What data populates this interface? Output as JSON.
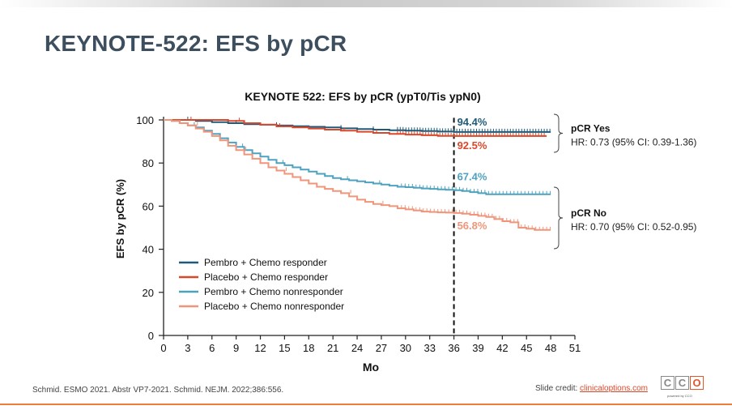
{
  "slide": {
    "title": "KEYNOTE-522: EFS by pCR",
    "footer_reference": "Schmid. ESMO 2021. Abstr VP7-2021. Schmid. NEJM. 2022;386:556.",
    "credit_label": "Slide credit:",
    "credit_link": "clinicaloptions.com",
    "logo": {
      "letters": [
        "C",
        "C",
        "O"
      ],
      "tagline": "powered by CCO"
    }
  },
  "chart_data": {
    "type": "line",
    "title": "KEYNOTE 522: EFS by pCR (ypT0/Tis ypN0)",
    "xlabel": "Mo",
    "ylabel": "EFS by pCR (%)",
    "xlim": [
      0,
      51
    ],
    "ylim": [
      0,
      100
    ],
    "xticks": [
      0,
      3,
      6,
      9,
      12,
      15,
      18,
      21,
      24,
      27,
      30,
      33,
      36,
      39,
      42,
      45,
      48,
      51
    ],
    "yticks": [
      0,
      20,
      40,
      60,
      80,
      100
    ],
    "grid": false,
    "legend_position": "bottom-left",
    "reference_line_x": 36,
    "series": [
      {
        "name": "Pembro + Chemo responder",
        "color": "#1f5b78",
        "label_at_36": "94.4%",
        "x": [
          0,
          2,
          4,
          6,
          8,
          10,
          12,
          14,
          16,
          18,
          20,
          22,
          24,
          26,
          28,
          30,
          32,
          34,
          36,
          38,
          40,
          42,
          44,
          46,
          48
        ],
        "y": [
          100,
          100,
          99.5,
          99,
          98.5,
          98,
          97.8,
          97.4,
          97.1,
          96.8,
          96.5,
          96.1,
          95.8,
          95.5,
          95.2,
          95,
          94.8,
          94.6,
          94.4,
          94.4,
          94.4,
          94.4,
          94.4,
          94.4,
          94.4
        ]
      },
      {
        "name": "Placebo + Chemo responder",
        "color": "#d9482b",
        "label_at_36": "92.5%",
        "x": [
          0,
          2,
          4,
          6,
          8,
          10,
          12,
          14,
          16,
          18,
          20,
          22,
          24,
          26,
          28,
          30,
          32,
          34,
          36,
          38,
          40,
          42,
          44,
          46,
          47.5
        ],
        "y": [
          100,
          100,
          100,
          100,
          99.5,
          98.5,
          97.8,
          97,
          96.5,
          96,
          95.5,
          95,
          94.5,
          94,
          93.5,
          93.2,
          92.9,
          92.6,
          92.5,
          92.5,
          92.5,
          92.5,
          92.5,
          92.5,
          92.5
        ]
      },
      {
        "name": "Pembro + Chemo nonresponder",
        "color": "#4ea2c0",
        "label_at_36": "67.4%",
        "x": [
          0,
          1,
          2,
          3,
          4,
          5,
          6,
          7,
          8,
          9,
          10,
          11,
          12,
          13,
          14,
          15,
          16,
          17,
          18,
          19,
          20,
          21,
          22,
          23,
          24,
          25,
          26,
          27,
          28,
          29,
          30,
          31,
          32,
          33,
          34,
          35,
          36,
          37,
          38,
          39,
          40,
          42,
          44,
          46,
          48
        ],
        "y": [
          100,
          99.5,
          98.5,
          97.5,
          96.5,
          95,
          93.5,
          91.5,
          89.5,
          87.5,
          86,
          84.5,
          83,
          81.5,
          80,
          79,
          78,
          77,
          76,
          75,
          74,
          73,
          72.5,
          72,
          71.5,
          71,
          70.5,
          70,
          69.5,
          69,
          68.8,
          68.5,
          68.2,
          68,
          67.8,
          67.6,
          67.4,
          67,
          66.5,
          66,
          65.5,
          65.5,
          65.5,
          65.5,
          65.5
        ]
      },
      {
        "name": "Placebo + Chemo nonresponder",
        "color": "#f0957a",
        "label_at_36": "56.8%",
        "x": [
          0,
          1,
          2,
          3,
          4,
          5,
          6,
          7,
          8,
          9,
          10,
          11,
          12,
          13,
          14,
          15,
          16,
          17,
          18,
          19,
          20,
          21,
          22,
          23,
          24,
          25,
          26,
          27,
          28,
          29,
          30,
          31,
          32,
          33,
          34,
          35,
          36,
          37,
          38,
          39,
          40,
          41,
          42,
          43,
          44,
          45,
          46,
          47,
          48
        ],
        "y": [
          100,
          99.5,
          98.5,
          97.5,
          96,
          94.5,
          92.5,
          90.5,
          88,
          86,
          84,
          82,
          80,
          78,
          76.5,
          75,
          73.5,
          72,
          70.5,
          69,
          68,
          67,
          66,
          64.5,
          63,
          62,
          61,
          60.5,
          60,
          59,
          58.5,
          58,
          57.5,
          57.3,
          57.1,
          57,
          56.8,
          56.5,
          56,
          55.5,
          55,
          54,
          53,
          52.5,
          50,
          49.5,
          49,
          49,
          49
        ]
      }
    ],
    "annotations": [
      {
        "text": "pCR Yes",
        "hr": "HR: 0.73 (95% CI: 0.39-1.36)",
        "range": [
          92.5,
          94.4
        ]
      },
      {
        "text": "pCR No",
        "hr": "HR: 0.70 (95% CI: 0.52-0.95)",
        "range": [
          56.8,
          67.4
        ]
      }
    ]
  }
}
